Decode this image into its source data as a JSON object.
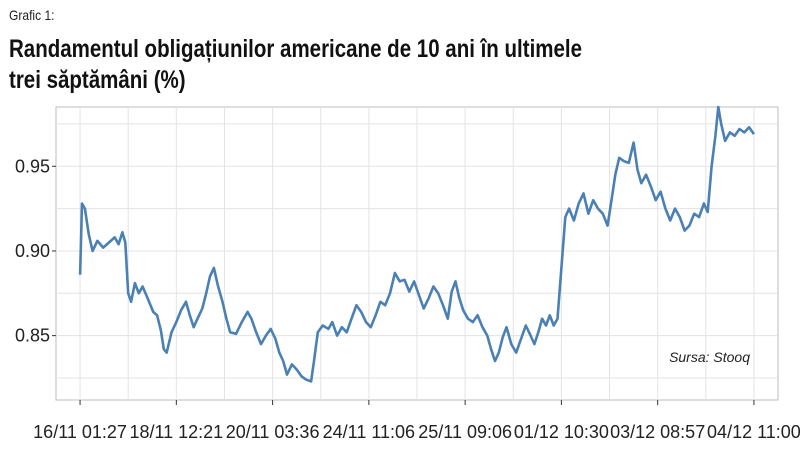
{
  "label": "Grafic 1:",
  "title_line1": "Randamentul obligațiunilor americane de 10 ani în ultimele",
  "title_line2": "trei săptămâni (%)",
  "source": "Sursa: Stooq",
  "colors": {
    "line": "#4a80b4",
    "grid": "#e3e3e3",
    "frame": "#bdbdbd"
  },
  "chart_data": {
    "type": "line",
    "title": "Randamentul obligațiunilor americane de 10 ani în ultimele trei săptămâni (%)",
    "xlabel": "",
    "ylabel": "",
    "grid": true,
    "ylim": [
      0.812,
      0.985
    ],
    "yticks": [
      0.85,
      0.9,
      0.95
    ],
    "ytick_labels": [
      "0.85",
      "0.90",
      "0.95"
    ],
    "xticks": [
      0,
      1,
      2,
      3,
      4,
      5,
      6,
      7
    ],
    "xtick_labels": [
      "16/11 01:27",
      "18/11 12:21",
      "20/11 03:36",
      "24/11 11:06",
      "25/11 09:06",
      "01/12 10:30",
      "03/12 08:57",
      "04/12 11:00"
    ],
    "xlim": [
      -0.25,
      7.25
    ],
    "series": [
      {
        "values": [
          [
            0.0,
            0.886
          ],
          [
            0.02,
            0.928
          ],
          [
            0.05,
            0.925
          ],
          [
            0.09,
            0.91
          ],
          [
            0.13,
            0.9
          ],
          [
            0.18,
            0.906
          ],
          [
            0.24,
            0.902
          ],
          [
            0.3,
            0.905
          ],
          [
            0.36,
            0.908
          ],
          [
            0.4,
            0.904
          ],
          [
            0.44,
            0.911
          ],
          [
            0.47,
            0.905
          ],
          [
            0.5,
            0.875
          ],
          [
            0.53,
            0.87
          ],
          [
            0.57,
            0.881
          ],
          [
            0.61,
            0.875
          ],
          [
            0.65,
            0.879
          ],
          [
            0.71,
            0.871
          ],
          [
            0.76,
            0.864
          ],
          [
            0.8,
            0.862
          ],
          [
            0.84,
            0.853
          ],
          [
            0.87,
            0.842
          ],
          [
            0.9,
            0.84
          ],
          [
            0.95,
            0.852
          ],
          [
            1.0,
            0.858
          ],
          [
            1.05,
            0.865
          ],
          [
            1.1,
            0.87
          ],
          [
            1.14,
            0.862
          ],
          [
            1.18,
            0.855
          ],
          [
            1.22,
            0.86
          ],
          [
            1.27,
            0.866
          ],
          [
            1.31,
            0.875
          ],
          [
            1.35,
            0.885
          ],
          [
            1.39,
            0.89
          ],
          [
            1.43,
            0.88
          ],
          [
            1.48,
            0.87
          ],
          [
            1.52,
            0.86
          ],
          [
            1.56,
            0.852
          ],
          [
            1.62,
            0.851
          ],
          [
            1.68,
            0.858
          ],
          [
            1.74,
            0.864
          ],
          [
            1.78,
            0.86
          ],
          [
            1.83,
            0.852
          ],
          [
            1.88,
            0.845
          ],
          [
            1.93,
            0.85
          ],
          [
            1.98,
            0.854
          ],
          [
            2.03,
            0.848
          ],
          [
            2.07,
            0.84
          ],
          [
            2.11,
            0.835
          ],
          [
            2.15,
            0.827
          ],
          [
            2.2,
            0.833
          ],
          [
            2.25,
            0.83
          ],
          [
            2.3,
            0.826
          ],
          [
            2.35,
            0.824
          ],
          [
            2.4,
            0.823
          ],
          [
            2.43,
            0.835
          ],
          [
            2.47,
            0.852
          ],
          [
            2.52,
            0.856
          ],
          [
            2.58,
            0.854
          ],
          [
            2.62,
            0.858
          ],
          [
            2.67,
            0.85
          ],
          [
            2.72,
            0.855
          ],
          [
            2.77,
            0.852
          ],
          [
            2.82,
            0.86
          ],
          [
            2.87,
            0.868
          ],
          [
            2.92,
            0.864
          ],
          [
            2.97,
            0.858
          ],
          [
            3.02,
            0.855
          ],
          [
            3.07,
            0.862
          ],
          [
            3.12,
            0.87
          ],
          [
            3.17,
            0.868
          ],
          [
            3.22,
            0.875
          ],
          [
            3.27,
            0.887
          ],
          [
            3.32,
            0.882
          ],
          [
            3.37,
            0.883
          ],
          [
            3.42,
            0.876
          ],
          [
            3.47,
            0.882
          ],
          [
            3.52,
            0.874
          ],
          [
            3.57,
            0.866
          ],
          [
            3.62,
            0.872
          ],
          [
            3.67,
            0.879
          ],
          [
            3.72,
            0.875
          ],
          [
            3.77,
            0.868
          ],
          [
            3.82,
            0.86
          ],
          [
            3.86,
            0.876
          ],
          [
            3.9,
            0.882
          ],
          [
            3.94,
            0.872
          ],
          [
            3.98,
            0.865
          ],
          [
            4.03,
            0.86
          ],
          [
            4.08,
            0.858
          ],
          [
            4.13,
            0.862
          ],
          [
            4.18,
            0.855
          ],
          [
            4.23,
            0.85
          ],
          [
            4.27,
            0.842
          ],
          [
            4.31,
            0.835
          ],
          [
            4.35,
            0.84
          ],
          [
            4.39,
            0.849
          ],
          [
            4.43,
            0.855
          ],
          [
            4.48,
            0.845
          ],
          [
            4.53,
            0.84
          ],
          [
            4.58,
            0.848
          ],
          [
            4.63,
            0.856
          ],
          [
            4.68,
            0.85
          ],
          [
            4.72,
            0.845
          ],
          [
            4.76,
            0.852
          ],
          [
            4.8,
            0.86
          ],
          [
            4.84,
            0.856
          ],
          [
            4.88,
            0.862
          ],
          [
            4.92,
            0.856
          ],
          [
            4.96,
            0.86
          ],
          [
            5.0,
            0.89
          ],
          [
            5.04,
            0.92
          ],
          [
            5.08,
            0.925
          ],
          [
            5.13,
            0.918
          ],
          [
            5.18,
            0.928
          ],
          [
            5.23,
            0.934
          ],
          [
            5.28,
            0.922
          ],
          [
            5.33,
            0.93
          ],
          [
            5.38,
            0.925
          ],
          [
            5.43,
            0.922
          ],
          [
            5.48,
            0.915
          ],
          [
            5.52,
            0.93
          ],
          [
            5.56,
            0.945
          ],
          [
            5.6,
            0.955
          ],
          [
            5.65,
            0.953
          ],
          [
            5.7,
            0.952
          ],
          [
            5.75,
            0.964
          ],
          [
            5.79,
            0.948
          ],
          [
            5.83,
            0.94
          ],
          [
            5.88,
            0.945
          ],
          [
            5.93,
            0.938
          ],
          [
            5.98,
            0.93
          ],
          [
            6.03,
            0.935
          ],
          [
            6.08,
            0.925
          ],
          [
            6.13,
            0.918
          ],
          [
            6.18,
            0.925
          ],
          [
            6.23,
            0.92
          ],
          [
            6.28,
            0.912
          ],
          [
            6.33,
            0.915
          ],
          [
            6.38,
            0.922
          ],
          [
            6.43,
            0.92
          ],
          [
            6.48,
            0.928
          ],
          [
            6.52,
            0.923
          ],
          [
            6.56,
            0.95
          ],
          [
            6.6,
            0.968
          ],
          [
            6.63,
            0.985
          ],
          [
            6.66,
            0.975
          ],
          [
            6.7,
            0.965
          ],
          [
            6.75,
            0.97
          ],
          [
            6.8,
            0.968
          ],
          [
            6.85,
            0.972
          ],
          [
            6.9,
            0.97
          ],
          [
            6.95,
            0.973
          ],
          [
            7.0,
            0.969
          ]
        ]
      }
    ]
  }
}
